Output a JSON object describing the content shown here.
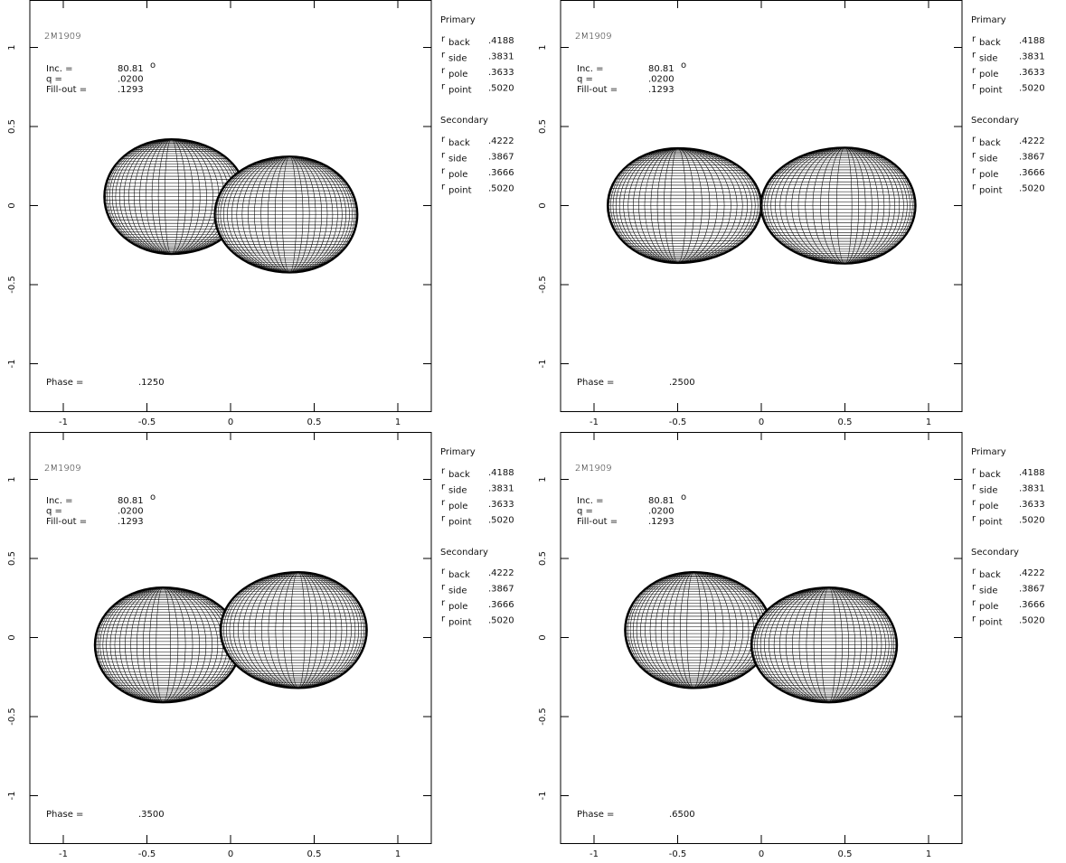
{
  "chart_data": [
    {
      "type": "binary-model",
      "title": "2M1909",
      "xlim": [
        -1.2,
        1.2
      ],
      "ylim": [
        -1.3,
        1.3
      ],
      "xticks": [
        -1,
        -0.5,
        0,
        0.5,
        1
      ],
      "yticks": [
        -1,
        -0.5,
        0,
        0.5,
        1
      ],
      "inc_label": "Inc. =",
      "inclination": 80.81,
      "inclination_unit": "o",
      "q_label": "q =",
      "q": {
        "value": 0.02,
        "label": ".0200"
      },
      "fillout_label": "Fill-out =",
      "fill_out": {
        "value": 0.1293,
        "label": ".1293"
      },
      "phase_label": "Phase =",
      "phase": {
        "value": 0.125,
        "label": ".1250"
      },
      "radius_symbol": "r",
      "components": [
        {
          "name": "Primary",
          "radii": [
            {
              "name": "back",
              "value": 0.4188,
              "label": ".4188"
            },
            {
              "name": "side",
              "value": 0.3831,
              "label": ".3831"
            },
            {
              "name": "pole",
              "value": 0.3633,
              "label": ".3633"
            },
            {
              "name": "point",
              "value": 0.502,
              "label": ".5020"
            }
          ]
        },
        {
          "name": "Secondary",
          "radii": [
            {
              "name": "back",
              "value": 0.4222,
              "label": ".4222"
            },
            {
              "name": "side",
              "value": 0.3867,
              "label": ".3867"
            },
            {
              "name": "pole",
              "value": 0.3666,
              "label": ".3666"
            },
            {
              "name": "point",
              "value": 0.502,
              "label": ".5020"
            }
          ]
        }
      ]
    },
    {
      "type": "binary-model",
      "title": "2M1909",
      "xlim": [
        -1.2,
        1.2
      ],
      "ylim": [
        -1.3,
        1.3
      ],
      "xticks": [
        -1,
        -0.5,
        0,
        0.5,
        1
      ],
      "yticks": [
        -1,
        -0.5,
        0,
        0.5,
        1
      ],
      "inc_label": "Inc. =",
      "inclination": 80.81,
      "inclination_unit": "o",
      "q_label": "q =",
      "q": {
        "value": 0.02,
        "label": ".0200"
      },
      "fillout_label": "Fill-out =",
      "fill_out": {
        "value": 0.1293,
        "label": ".1293"
      },
      "phase_label": "Phase =",
      "phase": {
        "value": 0.25,
        "label": ".2500"
      },
      "radius_symbol": "r",
      "components": [
        {
          "name": "Primary",
          "radii": [
            {
              "name": "back",
              "value": 0.4188,
              "label": ".4188"
            },
            {
              "name": "side",
              "value": 0.3831,
              "label": ".3831"
            },
            {
              "name": "pole",
              "value": 0.3633,
              "label": ".3633"
            },
            {
              "name": "point",
              "value": 0.502,
              "label": ".5020"
            }
          ]
        },
        {
          "name": "Secondary",
          "radii": [
            {
              "name": "back",
              "value": 0.4222,
              "label": ".4222"
            },
            {
              "name": "side",
              "value": 0.3867,
              "label": ".3867"
            },
            {
              "name": "pole",
              "value": 0.3666,
              "label": ".3666"
            },
            {
              "name": "point",
              "value": 0.502,
              "label": ".5020"
            }
          ]
        }
      ]
    },
    {
      "type": "binary-model",
      "title": "2M1909",
      "xlim": [
        -1.2,
        1.2
      ],
      "ylim": [
        -1.3,
        1.3
      ],
      "xticks": [
        -1,
        -0.5,
        0,
        0.5,
        1
      ],
      "yticks": [
        -1,
        -0.5,
        0,
        0.5,
        1
      ],
      "inc_label": "Inc. =",
      "inclination": 80.81,
      "inclination_unit": "o",
      "q_label": "q =",
      "q": {
        "value": 0.02,
        "label": ".0200"
      },
      "fillout_label": "Fill-out =",
      "fill_out": {
        "value": 0.1293,
        "label": ".1293"
      },
      "phase_label": "Phase =",
      "phase": {
        "value": 0.35,
        "label": ".3500"
      },
      "radius_symbol": "r",
      "components": [
        {
          "name": "Primary",
          "radii": [
            {
              "name": "back",
              "value": 0.4188,
              "label": ".4188"
            },
            {
              "name": "side",
              "value": 0.3831,
              "label": ".3831"
            },
            {
              "name": "pole",
              "value": 0.3633,
              "label": ".3633"
            },
            {
              "name": "point",
              "value": 0.502,
              "label": ".5020"
            }
          ]
        },
        {
          "name": "Secondary",
          "radii": [
            {
              "name": "back",
              "value": 0.4222,
              "label": ".4222"
            },
            {
              "name": "side",
              "value": 0.3867,
              "label": ".3867"
            },
            {
              "name": "pole",
              "value": 0.3666,
              "label": ".3666"
            },
            {
              "name": "point",
              "value": 0.502,
              "label": ".5020"
            }
          ]
        }
      ]
    },
    {
      "type": "binary-model",
      "title": "2M1909",
      "xlim": [
        -1.2,
        1.2
      ],
      "ylim": [
        -1.3,
        1.3
      ],
      "xticks": [
        -1,
        -0.5,
        0,
        0.5,
        1
      ],
      "yticks": [
        -1,
        -0.5,
        0,
        0.5,
        1
      ],
      "inc_label": "Inc. =",
      "inclination": 80.81,
      "inclination_unit": "o",
      "q_label": "q =",
      "q": {
        "value": 0.02,
        "label": ".0200"
      },
      "fillout_label": "Fill-out =",
      "fill_out": {
        "value": 0.1293,
        "label": ".1293"
      },
      "phase_label": "Phase =",
      "phase": {
        "value": 0.65,
        "label": ".6500"
      },
      "radius_symbol": "r",
      "components": [
        {
          "name": "Primary",
          "radii": [
            {
              "name": "back",
              "value": 0.4188,
              "label": ".4188"
            },
            {
              "name": "side",
              "value": 0.3831,
              "label": ".3831"
            },
            {
              "name": "pole",
              "value": 0.3633,
              "label": ".3633"
            },
            {
              "name": "point",
              "value": 0.502,
              "label": ".5020"
            }
          ]
        },
        {
          "name": "Secondary",
          "radii": [
            {
              "name": "back",
              "value": 0.4222,
              "label": ".4222"
            },
            {
              "name": "side",
              "value": 0.3867,
              "label": ".3867"
            },
            {
              "name": "pole",
              "value": 0.3666,
              "label": ".3666"
            },
            {
              "name": "point",
              "value": 0.502,
              "label": ".5020"
            }
          ]
        }
      ]
    }
  ]
}
